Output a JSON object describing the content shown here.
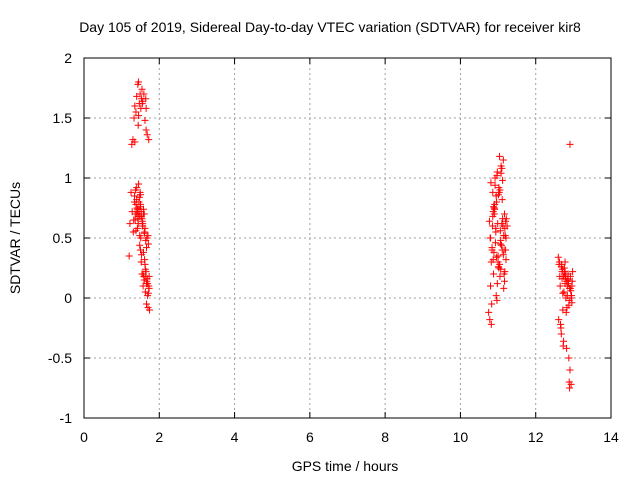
{
  "chart_data": {
    "type": "scatter",
    "title": "Day 105 of 2019, Sidereal Day-to-day VTEC variation (SDTVAR) for receiver kir8",
    "xlabel": "GPS time / hours",
    "ylabel": "SDTVAR / TECUs",
    "xlim": [
      0,
      14
    ],
    "ylim": [
      -1,
      2
    ],
    "xticks": [
      0,
      2,
      4,
      6,
      8,
      10,
      12,
      14
    ],
    "xtick_labels": [
      "0",
      "2",
      "4",
      "6",
      "8",
      "10",
      "12",
      "14"
    ],
    "yticks": [
      -1,
      -0.5,
      0,
      0.5,
      1,
      1.5,
      2
    ],
    "ytick_labels": [
      "-1",
      "-0.5",
      "0",
      "0.5",
      "1",
      "1.5",
      "2"
    ],
    "grid": true,
    "marker": "+",
    "color": "#ff0000",
    "series": [
      {
        "name": "SDTVAR",
        "x": [
          1.2,
          1.22,
          1.25,
          1.27,
          1.28,
          1.3,
          1.31,
          1.33,
          1.34,
          1.35,
          1.36,
          1.37,
          1.38,
          1.39,
          1.4,
          1.41,
          1.42,
          1.43,
          1.44,
          1.45,
          1.46,
          1.47,
          1.48,
          1.49,
          1.5,
          1.5,
          1.51,
          1.52,
          1.53,
          1.54,
          1.55,
          1.56,
          1.57,
          1.58,
          1.59,
          1.6,
          1.61,
          1.62,
          1.63,
          1.64,
          1.65,
          1.66,
          1.67,
          1.68,
          1.69,
          1.7,
          1.71,
          1.72,
          1.73,
          1.74,
          1.32,
          1.34,
          1.36,
          1.38,
          1.4,
          1.42,
          1.44,
          1.46,
          1.48,
          1.5,
          1.52,
          1.54,
          1.56,
          1.58,
          1.6,
          1.62,
          1.64,
          1.66,
          1.35,
          1.45,
          1.55,
          1.65,
          1.4,
          1.5,
          1.6,
          1.7,
          1.45,
          1.55,
          1.65,
          1.38,
          1.48,
          1.58,
          1.68,
          1.42,
          1.52,
          1.62,
          1.72,
          1.47,
          1.57,
          1.67,
          1.44,
          1.54,
          1.64,
          1.43,
          1.53,
          1.63,
          1.73,
          1.46,
          1.56,
          1.66,
          1.49,
          1.59,
          1.69,
          1.51,
          1.61,
          1.71,
          10.75,
          10.78,
          10.8,
          10.82,
          10.84,
          10.86,
          10.88,
          10.9,
          10.92,
          10.94,
          10.96,
          10.98,
          11.0,
          11.02,
          11.04,
          11.06,
          11.08,
          11.1,
          11.12,
          11.14,
          11.16,
          11.18,
          11.2,
          11.22,
          11.24,
          10.8,
          10.85,
          10.9,
          10.95,
          11.0,
          11.05,
          11.1,
          11.15,
          11.2,
          10.82,
          10.87,
          10.92,
          10.97,
          11.02,
          11.07,
          11.12,
          11.17,
          10.84,
          10.89,
          10.94,
          10.99,
          11.04,
          11.09,
          11.14,
          11.19,
          10.86,
          10.91,
          10.96,
          11.01,
          11.06,
          11.11,
          11.16,
          11.21,
          10.88,
          10.93,
          10.98,
          11.03,
          11.08,
          11.13,
          11.18,
          10.79,
          10.83,
          10.95,
          11.05,
          11.15,
          10.81,
          10.91,
          11.01,
          11.11,
          11.21,
          10.77,
          10.87,
          10.97,
          11.07,
          11.17,
          12.6,
          12.62,
          12.64,
          12.66,
          12.68,
          12.7,
          12.72,
          12.74,
          12.76,
          12.78,
          12.8,
          12.82,
          12.84,
          12.86,
          12.88,
          12.9,
          12.92,
          12.94,
          12.96,
          12.98,
          12.63,
          12.67,
          12.71,
          12.75,
          12.79,
          12.83,
          12.87,
          12.91,
          12.95,
          12.65,
          12.69,
          12.73,
          12.77,
          12.81,
          12.85,
          12.89,
          12.93,
          12.97,
          12.61,
          12.68,
          12.72,
          12.76,
          12.8,
          12.84,
          12.88,
          12.92,
          12.96,
          12.7,
          12.74,
          12.78,
          12.82,
          12.86,
          12.9,
          12.94,
          12.89,
          12.91
        ],
        "y": [
          0.35,
          0.62,
          0.88,
          1.28,
          0.72,
          1.32,
          0.55,
          1.5,
          0.8,
          1.6,
          0.65,
          0.9,
          1.55,
          0.7,
          1.68,
          0.75,
          0.58,
          1.78,
          0.68,
          1.8,
          0.72,
          1.62,
          0.52,
          1.7,
          0.78,
          0.4,
          1.58,
          0.3,
          1.66,
          0.2,
          0.6,
          1.64,
          0.1,
          0.7,
          1.7,
          0.15,
          0.55,
          1.48,
          0.05,
          0.18,
          1.4,
          -0.05,
          0.5,
          1.36,
          0.12,
          -0.08,
          0.45,
          1.32,
          0.18,
          -0.1,
          0.65,
          0.85,
          0.7,
          0.78,
          0.92,
          0.74,
          0.62,
          0.8,
          0.68,
          0.86,
          0.72,
          0.66,
          0.6,
          0.74,
          0.54,
          0.58,
          0.48,
          0.42,
          1.3,
          1.52,
          1.62,
          1.58,
          0.82,
          0.76,
          0.7,
          0.52,
          0.95,
          0.64,
          0.22,
          0.56,
          0.44,
          0.38,
          0.16,
          0.72,
          0.68,
          0.28,
          0.1,
          0.84,
          0.2,
          0.14,
          1.44,
          1.74,
          1.66,
          0.66,
          0.36,
          0.24,
          0.08,
          0.74,
          0.62,
          0.12,
          0.88,
          0.18,
          0.02,
          0.5,
          0.32,
          0.04,
          -0.12,
          -0.18,
          0.1,
          -0.22,
          0.4,
          0.88,
          0.2,
          0.7,
          1.0,
          0.55,
          0.8,
          1.05,
          0.3,
          0.92,
          1.18,
          0.45,
          1.1,
          0.62,
          0.98,
          1.15,
          0.2,
          0.58,
          0.4,
          0.66,
          0.6,
          0.5,
          0.6,
          0.75,
          0.85,
          0.35,
          0.9,
          1.08,
          0.52,
          0.64,
          0.3,
          0.72,
          0.94,
          1.02,
          0.25,
          0.48,
          0.66,
          0.7,
          0.42,
          0.38,
          0.58,
          0.62,
          0.28,
          0.44,
          0.36,
          0.52,
          0.68,
          0.78,
          0.34,
          0.26,
          0.56,
          0.82,
          0.4,
          0.32,
          0.76,
          0.46,
          0.12,
          0.88,
          1.04,
          0.6,
          0.22,
          0.5,
          -0.05,
          0.02,
          0.18,
          0.08,
          0.96,
          0.74,
          0.86,
          0.4,
          0.5,
          0.64,
          0.32,
          -0.02,
          0.24,
          0.14,
          0.34,
          0.28,
          0.18,
          -0.22,
          -0.3,
          0.22,
          -0.1,
          -0.36,
          0.25,
          0.12,
          0.2,
          -0.42,
          0.02,
          0.15,
          -0.5,
          0.08,
          0.18,
          -0.72,
          0.1,
          0.22,
          0.3,
          -0.25,
          0.24,
          0.05,
          0.18,
          -0.08,
          0.12,
          -0.6,
          0.02,
          0.1,
          0.28,
          -0.4,
          0.2,
          -0.12,
          0.16,
          -0.02,
          0.06,
          0.14,
          -0.18,
          0.26,
          0.04,
          0.22,
          0.0,
          0.1,
          -0.06,
          0.08,
          -0.04,
          0.16,
          0.18,
          0.3,
          0.14,
          0.2,
          -0.75,
          0.0,
          -0.7,
          1.28
        ]
      }
    ]
  }
}
